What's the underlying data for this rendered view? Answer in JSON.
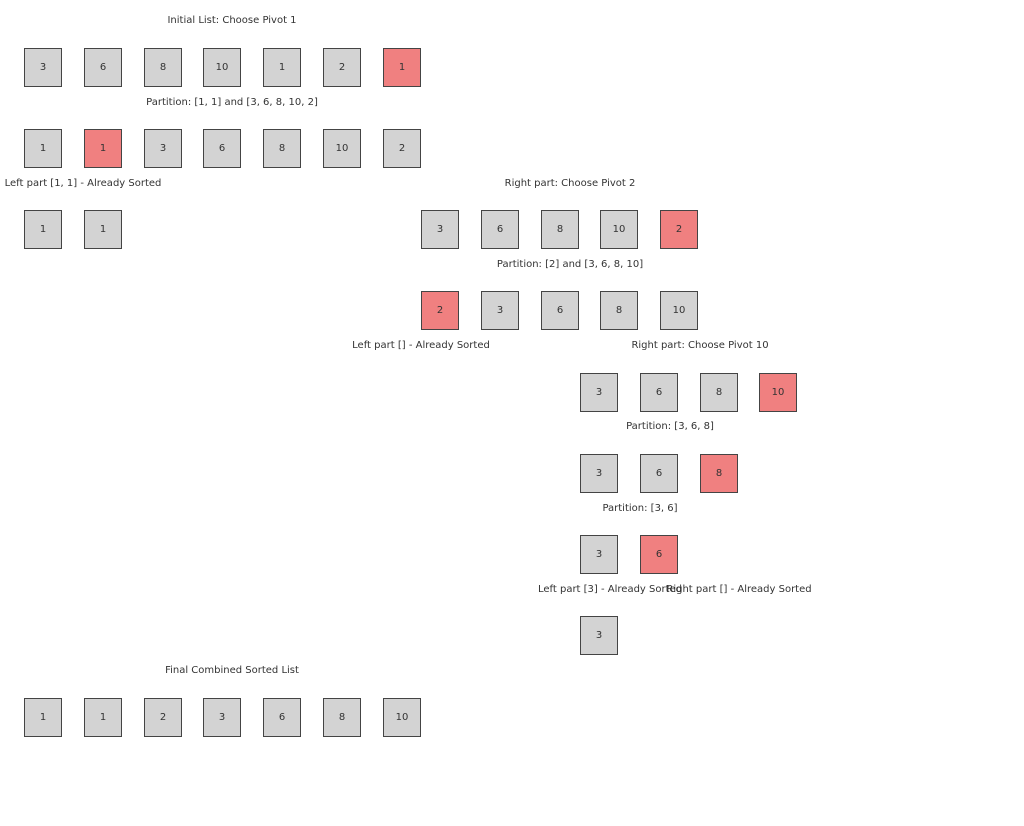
{
  "colors": {
    "box": "#d3d3d3",
    "pivot": "#f08080",
    "border": "#444444",
    "text": "#333333"
  },
  "steps": [
    {
      "caption": "Initial List: Choose Pivot 1",
      "values": [
        "3",
        "6",
        "8",
        "10",
        "1",
        "2",
        "1"
      ],
      "pivot_index": 6
    },
    {
      "caption": "Partition: [1, 1] and [3, 6, 8, 10, 2]",
      "values": [
        "1",
        "1",
        "3",
        "6",
        "8",
        "10",
        "2"
      ],
      "pivot_index": 1
    },
    {
      "caption": "Left part [1, 1] - Already Sorted",
      "values": [
        "1",
        "1"
      ],
      "pivot_index": null
    },
    {
      "caption": "Right part: Choose Pivot 2",
      "values": [
        "3",
        "6",
        "8",
        "10",
        "2"
      ],
      "pivot_index": 4
    },
    {
      "caption": "Partition: [2] and [3, 6, 8, 10]",
      "values": [
        "2",
        "3",
        "6",
        "8",
        "10"
      ],
      "pivot_index": 0
    },
    {
      "caption": "Left part [] - Already Sorted",
      "values": [],
      "pivot_index": null
    },
    {
      "caption": "Right part: Choose Pivot 10",
      "values": [
        "3",
        "6",
        "8",
        "10"
      ],
      "pivot_index": 3
    },
    {
      "caption": "Partition: [3, 6, 8]",
      "values": [
        "3",
        "6",
        "8"
      ],
      "pivot_index": 2
    },
    {
      "caption": "Partition: [3, 6]",
      "values": [
        "3",
        "6"
      ],
      "pivot_index": 1
    },
    {
      "caption": "Left part [3] - Already Sorted",
      "values": [
        "3"
      ],
      "pivot_index": null
    },
    {
      "caption": "Right part [] - Already Sorted",
      "values": [],
      "pivot_index": null
    },
    {
      "caption": "Final Combined Sorted List",
      "values": [
        "1",
        "1",
        "2",
        "3",
        "6",
        "8",
        "10"
      ],
      "pivot_index": null
    }
  ]
}
